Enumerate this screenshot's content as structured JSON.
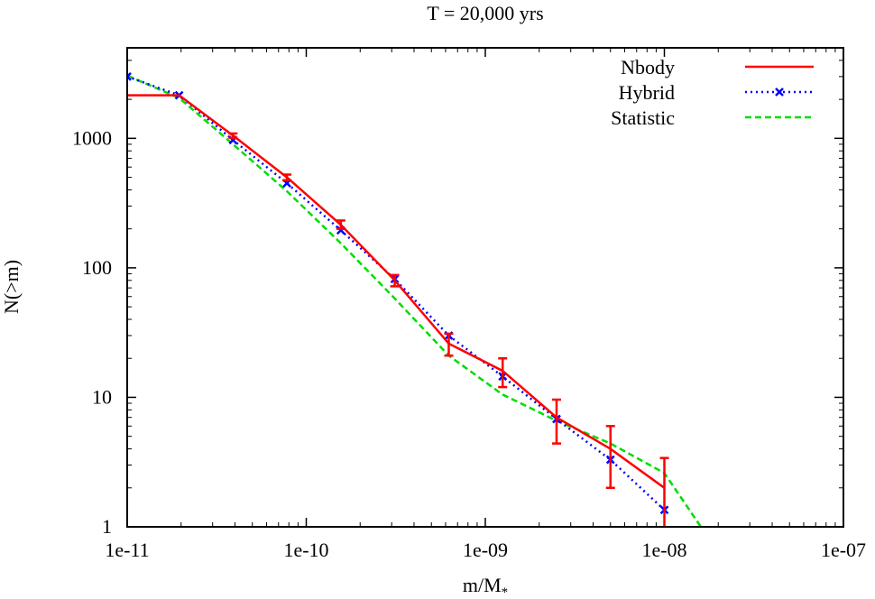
{
  "chart_data": {
    "type": "line",
    "title": "T = 20,000 yrs",
    "xlabel": "m/M",
    "xlabel_sub": "*",
    "ylabel": "N(>m)",
    "xscale": "log",
    "yscale": "log",
    "xlim": [
      1e-11,
      1e-07
    ],
    "ylim": [
      1,
      5000
    ],
    "grid": false,
    "legend_position": "top-right",
    "x_ticks": [
      {
        "value": 1e-11,
        "label": "1e-11"
      },
      {
        "value": 1e-10,
        "label": "1e-10"
      },
      {
        "value": 1e-09,
        "label": "1e-09"
      },
      {
        "value": 1e-08,
        "label": "1e-08"
      },
      {
        "value": 1e-07,
        "label": "1e-07"
      }
    ],
    "y_ticks": [
      {
        "value": 1,
        "label": "1"
      },
      {
        "value": 10,
        "label": "10"
      },
      {
        "value": 100,
        "label": "100"
      },
      {
        "value": 1000,
        "label": "1000"
      }
    ],
    "series": [
      {
        "name": "Nbody",
        "color": "#ff0000",
        "style": "solid",
        "marker": "none",
        "x": [
          1e-11,
          1.95e-11,
          3.9e-11,
          7.8e-11,
          1.56e-10,
          3.12e-10,
          6.25e-10,
          1.25e-09,
          2.5e-09,
          5e-09,
          1e-08
        ],
        "y": [
          2150,
          2150,
          1050,
          500,
          215,
          80,
          26,
          16,
          7,
          4,
          2
        ],
        "error_bars": [
          {
            "x": 3.9e-11,
            "low": 1010,
            "high": 1090
          },
          {
            "x": 7.8e-11,
            "low": 475,
            "high": 525
          },
          {
            "x": 1.56e-10,
            "low": 200,
            "high": 232
          },
          {
            "x": 3.12e-10,
            "low": 72,
            "high": 88
          },
          {
            "x": 6.25e-10,
            "low": 21,
            "high": 31
          },
          {
            "x": 1.25e-09,
            "low": 12,
            "high": 20
          },
          {
            "x": 2.5e-09,
            "low": 4.4,
            "high": 9.6
          },
          {
            "x": 5e-09,
            "low": 2,
            "high": 6
          },
          {
            "x": 1e-08,
            "low": 0.6,
            "high": 3.4
          }
        ]
      },
      {
        "name": "Hybrid",
        "color": "#0000ff",
        "style": "dotted",
        "marker": "x",
        "x": [
          1e-11,
          1.95e-11,
          3.9e-11,
          7.8e-11,
          1.56e-10,
          3.12e-10,
          6.25e-10,
          1.25e-09,
          2.5e-09,
          5e-09,
          1e-08
        ],
        "y": [
          3000,
          2150,
          970,
          450,
          195,
          82,
          30,
          14.5,
          6.8,
          3.3,
          1.35
        ]
      },
      {
        "name": "Statistic",
        "color": "#00dd00",
        "style": "dashed",
        "marker": "none",
        "x": [
          1e-11,
          1.95e-11,
          3.9e-11,
          7.8e-11,
          1.56e-10,
          3.12e-10,
          6.25e-10,
          1.25e-09,
          2.5e-09,
          5e-09,
          1e-08,
          1.6e-08
        ],
        "y": [
          3050,
          2050,
          900,
          390,
          155,
          58,
          21,
          10.5,
          6.6,
          4.4,
          2.6,
          1
        ]
      }
    ]
  }
}
